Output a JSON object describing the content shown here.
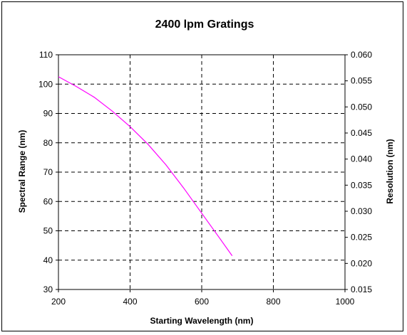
{
  "chart_data": {
    "type": "line",
    "title": "2400 lpm Gratings",
    "xlabel": "Starting Wavelength (nm)",
    "ylabel": "Spectral Range (nm)",
    "y2label": "Resolution (nm)",
    "xlim": [
      200,
      1000
    ],
    "ylim": [
      30,
      110
    ],
    "y2lim": [
      0.015,
      0.06
    ],
    "xticks": [
      "200",
      "400",
      "600",
      "800",
      "1000"
    ],
    "yticks": [
      "30",
      "40",
      "50",
      "60",
      "70",
      "80",
      "90",
      "100",
      "110"
    ],
    "y2ticks": [
      "0.015",
      "0.020",
      "0.025",
      "0.030",
      "0.035",
      "0.040",
      "0.045",
      "0.050",
      "0.055",
      "0.060"
    ],
    "grid": true,
    "series": [
      {
        "color": "#ff00ff",
        "axis": "left",
        "x": [
          200,
          250,
          300,
          350,
          400,
          450,
          500,
          550,
          600,
          650,
          685
        ],
        "y": [
          102.5,
          99.2,
          95.5,
          90.8,
          85.5,
          79.5,
          72.5,
          64.5,
          56,
          47.5,
          41.5
        ]
      }
    ]
  }
}
